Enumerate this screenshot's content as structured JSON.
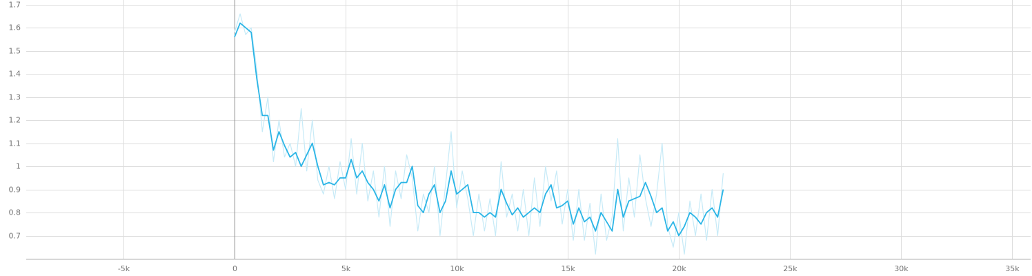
{
  "chart_data": {
    "type": "line",
    "x": [
      0,
      250,
      500,
      750,
      1000,
      1250,
      1500,
      1750,
      2000,
      2250,
      2500,
      2750,
      3000,
      3250,
      3500,
      3750,
      4000,
      4250,
      4500,
      4750,
      5000,
      5250,
      5500,
      5750,
      6000,
      6250,
      6500,
      6750,
      7000,
      7250,
      7500,
      7750,
      8000,
      8250,
      8500,
      8750,
      9000,
      9250,
      9500,
      9750,
      10000,
      10250,
      10500,
      10750,
      11000,
      11250,
      11500,
      11750,
      12000,
      12250,
      12500,
      12750,
      13000,
      13250,
      13500,
      13750,
      14000,
      14250,
      14500,
      14750,
      15000,
      15250,
      15500,
      15750,
      16000,
      16250,
      16500,
      16750,
      17000,
      17250,
      17500,
      17750,
      18000,
      18250,
      18500,
      18750,
      19000,
      19250,
      19500,
      19750,
      20000,
      20250,
      20500,
      20750,
      21000,
      21250,
      21500,
      21750,
      22000
    ],
    "series": [
      {
        "color": "#c6eaf7",
        "values": [
          1.58,
          1.66,
          1.57,
          1.6,
          1.42,
          1.15,
          1.3,
          1.02,
          1.2,
          1.04,
          1.1,
          1.0,
          1.25,
          0.98,
          1.2,
          0.94,
          0.88,
          1.0,
          0.86,
          1.02,
          0.9,
          1.12,
          0.88,
          1.1,
          0.85,
          0.98,
          0.78,
          1.0,
          0.74,
          0.98,
          0.86,
          1.05,
          0.95,
          0.72,
          0.88,
          0.8,
          1.0,
          0.7,
          0.92,
          1.15,
          0.82,
          0.98,
          0.86,
          0.7,
          0.88,
          0.72,
          0.86,
          0.7,
          1.02,
          0.78,
          0.88,
          0.72,
          0.9,
          0.7,
          0.95,
          0.74,
          1.0,
          0.85,
          0.98,
          0.75,
          0.9,
          0.68,
          0.9,
          0.68,
          0.84,
          0.62,
          0.88,
          0.68,
          0.78,
          1.12,
          0.72,
          0.95,
          0.78,
          1.05,
          0.86,
          0.74,
          0.88,
          1.1,
          0.74,
          0.65,
          0.8,
          0.62,
          0.85,
          0.7,
          0.88,
          0.68,
          0.9,
          0.7,
          0.97
        ]
      },
      {
        "color": "#2bb5e6",
        "values": [
          1.56,
          1.62,
          1.6,
          1.58,
          1.38,
          1.22,
          1.22,
          1.07,
          1.15,
          1.09,
          1.04,
          1.06,
          1.0,
          1.05,
          1.1,
          1.0,
          0.92,
          0.93,
          0.92,
          0.95,
          0.95,
          1.03,
          0.95,
          0.98,
          0.93,
          0.9,
          0.85,
          0.92,
          0.82,
          0.9,
          0.93,
          0.93,
          1.0,
          0.83,
          0.8,
          0.88,
          0.92,
          0.8,
          0.85,
          0.98,
          0.88,
          0.9,
          0.92,
          0.8,
          0.8,
          0.78,
          0.8,
          0.78,
          0.9,
          0.84,
          0.79,
          0.82,
          0.78,
          0.8,
          0.82,
          0.8,
          0.88,
          0.92,
          0.82,
          0.83,
          0.85,
          0.75,
          0.82,
          0.76,
          0.78,
          0.72,
          0.8,
          0.76,
          0.72,
          0.9,
          0.78,
          0.85,
          0.86,
          0.87,
          0.93,
          0.87,
          0.8,
          0.82,
          0.72,
          0.76,
          0.7,
          0.74,
          0.8,
          0.78,
          0.75,
          0.8,
          0.82,
          0.78,
          0.9
        ]
      }
    ],
    "xlim": [
      -9380,
      35840
    ],
    "ylim": [
      0.6,
      1.72
    ],
    "xticks": [
      {
        "value": -5000,
        "label": "-5k"
      },
      0,
      {
        "value": 5000,
        "label": "5k"
      },
      {
        "value": 10000,
        "label": "10k"
      },
      {
        "value": 15000,
        "label": "15k"
      },
      {
        "value": 20000,
        "label": "20k"
      },
      {
        "value": 25000,
        "label": "25k"
      },
      {
        "value": 30000,
        "label": "30k"
      },
      {
        "value": 35000,
        "label": "35k"
      }
    ],
    "yticks": [
      0.7,
      0.8,
      0.9,
      1,
      1.1,
      1.2,
      1.3,
      1.4,
      1.5,
      1.6,
      1.7
    ],
    "grid": true
  }
}
